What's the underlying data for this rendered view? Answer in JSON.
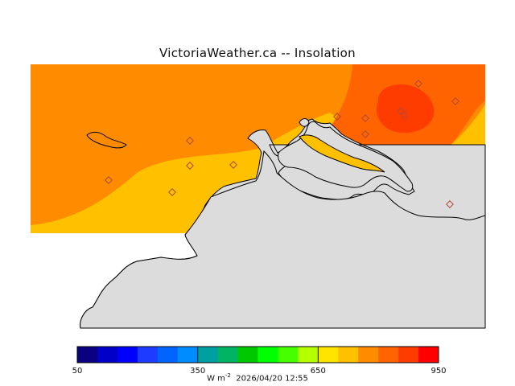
{
  "title": "VictoriaWeather.ca -- Insolation",
  "colors": {
    "fill_600": "#ffc000",
    "fill_700": "#ff8c00",
    "fill_750": "#ff6400",
    "fill_800": "#ff3c00",
    "fill_650": "#ffe400",
    "land": "#dcdcdc",
    "station_marker": "#b96a4a"
  },
  "colorbar": {
    "min": 50,
    "max": 950,
    "tick_labels": [
      "50",
      "350",
      "650",
      "950"
    ],
    "tick_values": [
      50,
      350,
      650,
      950
    ],
    "step": 50,
    "colors": [
      "#0a0080",
      "#0000c8",
      "#0000ff",
      "#1e3cff",
      "#0064ff",
      "#008cff",
      "#00a0a0",
      "#00b464",
      "#00c800",
      "#00ff00",
      "#46ff00",
      "#b4ff00",
      "#ffe400",
      "#ffc000",
      "#ff8c00",
      "#ff6400",
      "#ff3c00",
      "#ff0000"
    ],
    "unit_prefix": "W m",
    "unit_exponent": "-2",
    "timestamp": "2026/04/20 12:55"
  }
}
